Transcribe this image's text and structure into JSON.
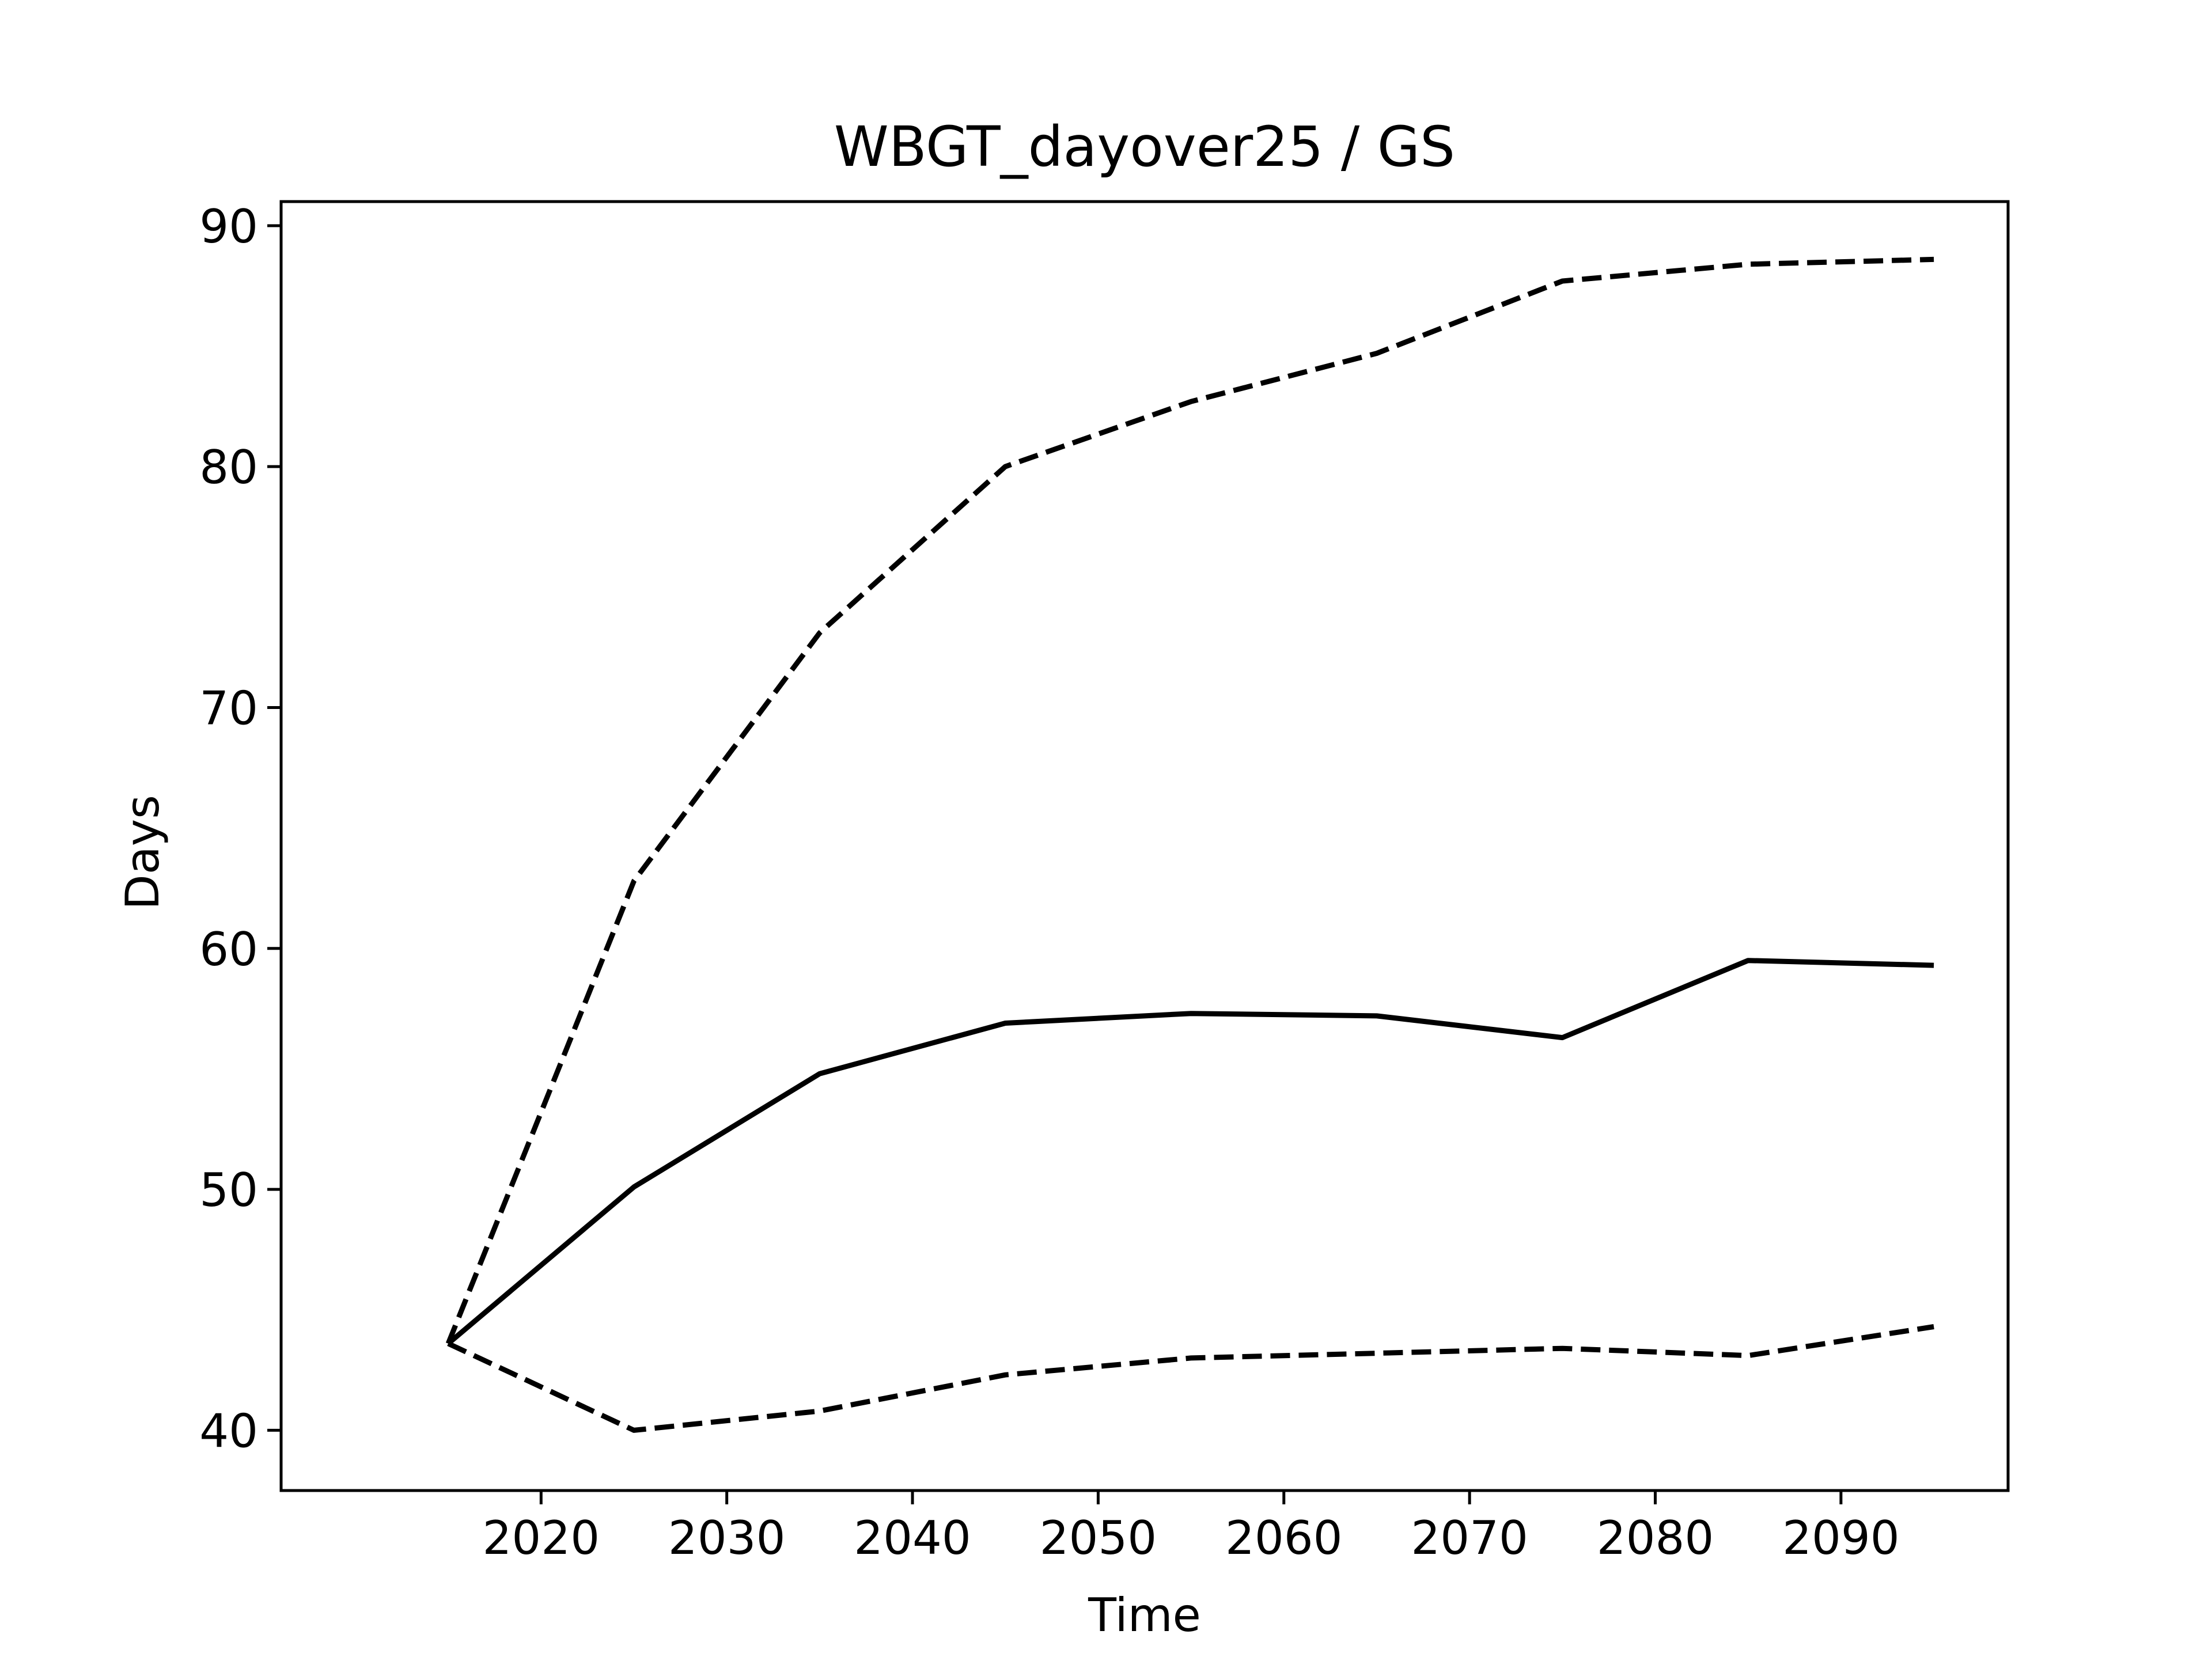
{
  "chart_data": {
    "type": "line",
    "title": "WBGT_dayover25 / GS",
    "xlabel": "Time",
    "ylabel": "Days",
    "x": [
      2015,
      2025,
      2035,
      2045,
      2055,
      2065,
      2075,
      2085,
      2095
    ],
    "xlim": [
      2006,
      2099
    ],
    "ylim": [
      37.5,
      91
    ],
    "xticks": [
      2020,
      2030,
      2040,
      2050,
      2060,
      2070,
      2080,
      2090
    ],
    "yticks": [
      40,
      50,
      60,
      70,
      80,
      90
    ],
    "grid": false,
    "legend": "none",
    "series": [
      {
        "style": "solid",
        "color": "#000000",
        "values": [
          43.6,
          50.1,
          54.8,
          56.9,
          57.3,
          57.2,
          56.3,
          59.5,
          59.3
        ]
      },
      {
        "style": "dashed",
        "color": "#000000",
        "values": [
          43.6,
          62.8,
          73.1,
          80.0,
          82.7,
          84.7,
          87.7,
          88.4,
          88.6
        ]
      },
      {
        "style": "dashed",
        "color": "#000000",
        "values": [
          43.6,
          40.0,
          40.8,
          42.3,
          43.0,
          43.2,
          43.4,
          43.1,
          44.3
        ]
      }
    ]
  }
}
